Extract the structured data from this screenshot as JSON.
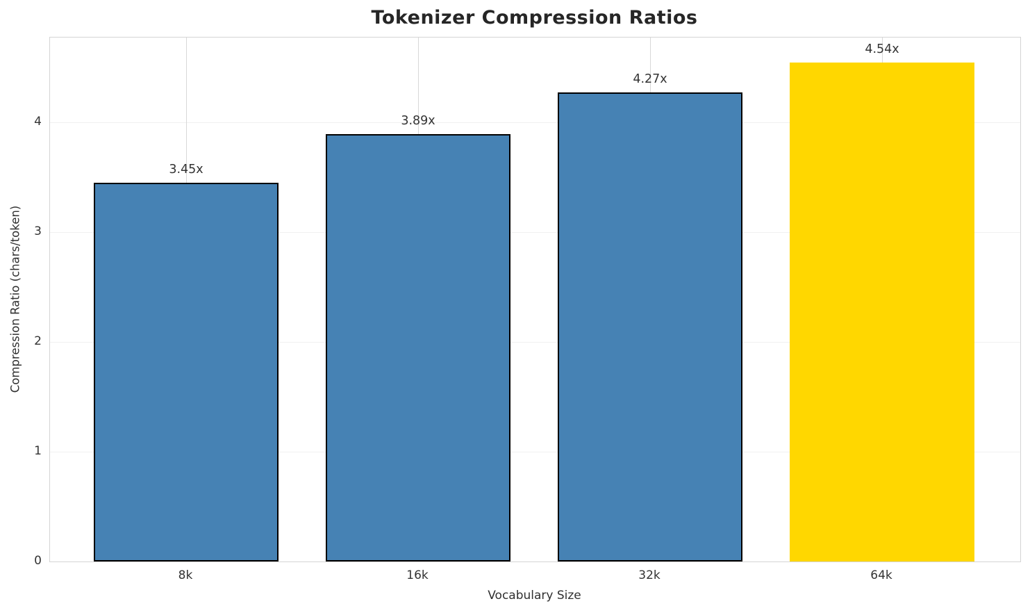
{
  "chart_data": {
    "type": "bar",
    "title": "Tokenizer Compression Ratios",
    "xlabel": "Vocabulary Size",
    "ylabel": "Compression Ratio (chars/token)",
    "categories": [
      "8k",
      "16k",
      "32k",
      "64k"
    ],
    "values": [
      3.45,
      3.89,
      4.27,
      4.54
    ],
    "value_labels": [
      "3.45x",
      "3.89x",
      "4.27x",
      "4.54x"
    ],
    "series": [
      {
        "name": "Compression Ratio",
        "values": [
          3.45,
          3.89,
          4.27,
          4.54
        ]
      }
    ],
    "yticks": [
      0,
      1,
      2,
      3,
      4
    ],
    "ylim": [
      0,
      4.77
    ],
    "grid": "both",
    "legend": "none",
    "bar_colors": [
      "#4682B4",
      "#4682B4",
      "#4682B4",
      "#FFD700"
    ],
    "bar_edge_colors": [
      "#000000",
      "#000000",
      "#000000",
      "none"
    ],
    "highlight_category": "64k",
    "colors": {
      "bar_default": "#4682B4",
      "bar_highlight": "#FFD700",
      "bar_edge": "#000000",
      "title_text": "#262626",
      "tick_text": "#333333"
    }
  }
}
